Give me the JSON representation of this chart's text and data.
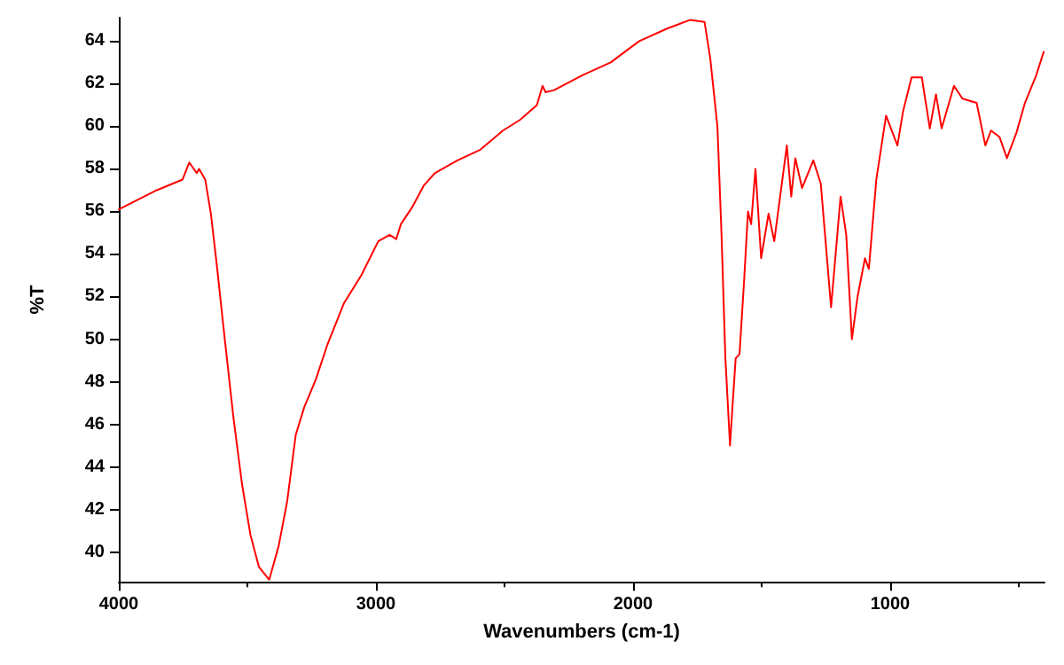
{
  "chart_data": {
    "type": "line",
    "xlabel": "Wavenumbers (cm-1)",
    "ylabel": "%T",
    "xlim": [
      4000,
      400
    ],
    "ylim": [
      38.6,
      65.1
    ],
    "xticks": [
      4000,
      3000,
      2000,
      1000
    ],
    "yticks": [
      40,
      42,
      44,
      46,
      48,
      50,
      52,
      54,
      56,
      58,
      60,
      62,
      64
    ],
    "grid": false,
    "marker": "none",
    "line_style": "solid",
    "series": [
      {
        "color": "#ff0000",
        "x": [
          4000,
          3852,
          3752,
          3726,
          3697,
          3688,
          3664,
          3642,
          3620,
          3587,
          3554,
          3521,
          3488,
          3455,
          3415,
          3378,
          3345,
          3312,
          3279,
          3234,
          3190,
          3124,
          3057,
          2991,
          2947,
          2921,
          2903,
          2859,
          2815,
          2771,
          2683,
          2594,
          2506,
          2440,
          2374,
          2352,
          2340,
          2307,
          2197,
          2087,
          1976,
          1866,
          1778,
          1722,
          1700,
          1672,
          1656,
          1641,
          1623,
          1612,
          1601,
          1586,
          1568,
          1553,
          1541,
          1524,
          1502,
          1473,
          1451,
          1402,
          1385,
          1369,
          1343,
          1299,
          1270,
          1230,
          1193,
          1171,
          1149,
          1127,
          1098,
          1083,
          1054,
          1016,
          972,
          950,
          917,
          877,
          846,
          822,
          800,
          752,
          719,
          664,
          630,
          608,
          575,
          546,
          509,
          476,
          432,
          403
        ],
        "values": [
          56.1,
          57.0,
          57.5,
          58.3,
          57.8,
          58.0,
          57.5,
          55.9,
          53.6,
          49.9,
          46.3,
          43.2,
          40.8,
          39.3,
          38.7,
          40.3,
          42.4,
          45.5,
          46.8,
          48.1,
          49.7,
          51.7,
          53.0,
          54.6,
          54.9,
          54.7,
          55.4,
          56.2,
          57.2,
          57.8,
          58.4,
          58.9,
          59.8,
          60.3,
          61.0,
          61.9,
          61.6,
          61.7,
          62.4,
          63.0,
          64.0,
          64.6,
          65.0,
          64.9,
          63.2,
          60.0,
          54.9,
          49.1,
          45.0,
          47.1,
          49.1,
          49.3,
          52.8,
          56.0,
          55.4,
          58.0,
          53.8,
          55.9,
          54.6,
          59.1,
          56.7,
          58.5,
          57.1,
          58.4,
          57.3,
          51.5,
          56.7,
          54.9,
          50.0,
          52.0,
          53.8,
          53.3,
          57.5,
          60.5,
          59.1,
          60.7,
          62.3,
          62.3,
          59.9,
          61.5,
          59.9,
          61.9,
          61.3,
          61.1,
          59.1,
          59.8,
          59.5,
          58.5,
          59.7,
          61.1,
          62.4,
          63.5
        ]
      }
    ]
  }
}
